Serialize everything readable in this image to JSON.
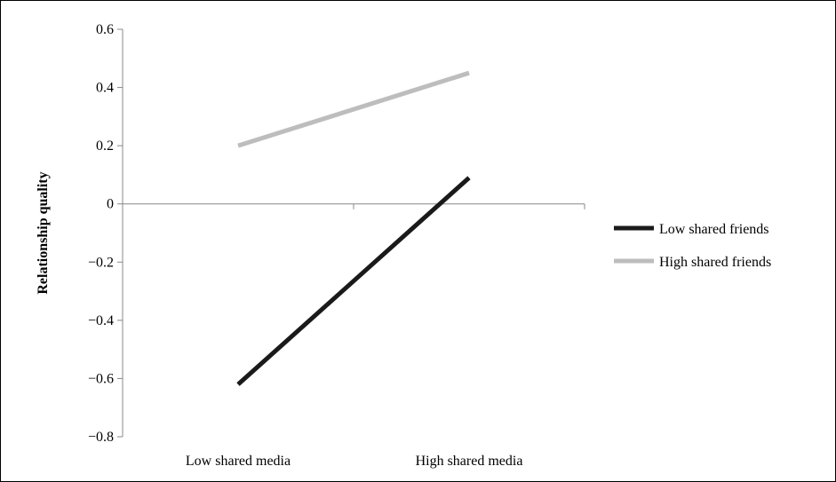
{
  "chart_data": {
    "type": "line",
    "title": "",
    "xlabel": "",
    "ylabel": "Relationship quality",
    "categories": [
      "Low shared media",
      "High shared media"
    ],
    "ylim": [
      -0.8,
      0.6
    ],
    "yticks": [
      0.6,
      0.4,
      0.2,
      0,
      -0.2,
      -0.4,
      -0.6,
      -0.8
    ],
    "ytick_labels": [
      "0.6",
      "0.4",
      "0.2",
      "0",
      "−0.2",
      "−0.4",
      "−0.6",
      "−0.8"
    ],
    "grid": false,
    "legend_position": "right",
    "series": [
      {
        "name": "Low shared friends",
        "values": [
          -0.62,
          0.09
        ],
        "color": "#1a1a1a"
      },
      {
        "name": "High shared friends",
        "values": [
          0.2,
          0.45
        ],
        "color": "#bdbdbd"
      }
    ]
  }
}
